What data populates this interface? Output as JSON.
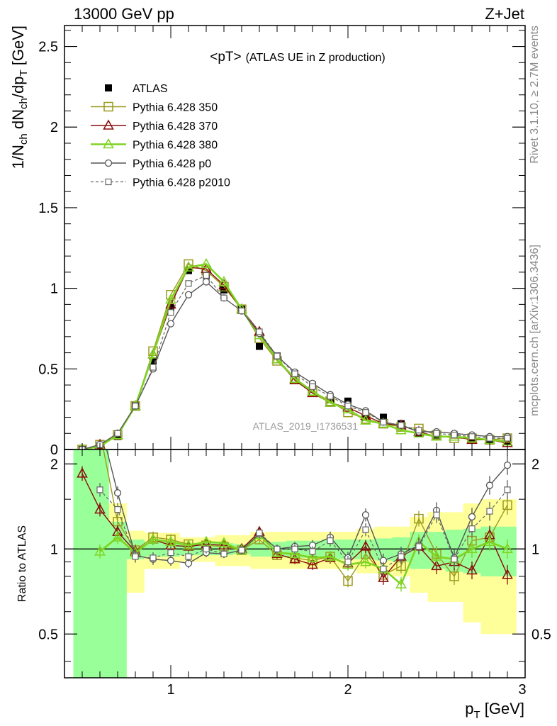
{
  "header": {
    "left": "13000 GeV pp",
    "right": "Z+Jet"
  },
  "side_text": {
    "top": "Rivet 3.1.10, ≥ 2.7M events",
    "bottom": "mcplots.cern.ch [arXiv:1306.3436]"
  },
  "chart_data": [
    {
      "type": "line",
      "panel": "main",
      "title": "<pT>",
      "subtitle": "(ATLAS UE in Z production)",
      "watermark": "ATLAS_2019_I1736531",
      "ylabel": "1/N_ch dN_ch/dp_T [GeV]",
      "ylim": [
        0,
        2.63
      ],
      "xlim": [
        0.4,
        3.0
      ],
      "yticks": [
        0,
        0.5,
        1,
        1.5,
        2,
        2.5
      ],
      "ytick_labels": [
        "0",
        "0.5",
        "1",
        "1.5",
        "2",
        "2.5"
      ],
      "legend_position": "top-left",
      "x": [
        0.5,
        0.6,
        0.7,
        0.8,
        0.9,
        1.0,
        1.1,
        1.2,
        1.3,
        1.4,
        1.5,
        1.6,
        1.7,
        1.8,
        1.9,
        2.0,
        2.1,
        2.2,
        2.3,
        2.4,
        2.5,
        2.6,
        2.7,
        2.8,
        2.9
      ],
      "series": [
        {
          "name": "ATLAS",
          "color": "#000000",
          "marker": "filled-square",
          "line": "none",
          "values": [
            0.0,
            0.02,
            0.08,
            0.27,
            0.55,
            0.88,
            1.11,
            1.08,
            0.99,
            0.87,
            0.64,
            0.58,
            0.47,
            0.4,
            0.31,
            0.3,
            0.2,
            0.2,
            0.16,
            0.1,
            0.09,
            0.09,
            0.07,
            0.06,
            0.05
          ]
        },
        {
          "name": "Pythia 6.428 350",
          "color": "#9a9a1e",
          "marker": "open-square",
          "line": "solid",
          "values": [
            0.0,
            0.03,
            0.09,
            0.27,
            0.61,
            0.96,
            1.15,
            1.11,
            1.01,
            0.87,
            0.69,
            0.55,
            0.44,
            0.36,
            0.3,
            0.23,
            0.19,
            0.16,
            0.14,
            0.13,
            0.09,
            0.07,
            0.07,
            0.06,
            0.07
          ]
        },
        {
          "name": "Pythia 6.428 370",
          "color": "#8b0c0c",
          "marker": "open-triangle",
          "line": "solid",
          "values": [
            0.0,
            0.03,
            0.09,
            0.27,
            0.59,
            0.9,
            1.13,
            1.12,
            1.02,
            0.87,
            0.73,
            0.56,
            0.43,
            0.35,
            0.29,
            0.26,
            0.21,
            0.16,
            0.15,
            0.11,
            0.08,
            0.08,
            0.06,
            0.06,
            0.04
          ]
        },
        {
          "name": "Pythia 6.428 380",
          "color": "#7ed321",
          "marker": "open-triangle",
          "line": "solid-thick",
          "values": [
            0.0,
            0.02,
            0.09,
            0.27,
            0.59,
            0.93,
            1.13,
            1.15,
            1.04,
            0.87,
            0.71,
            0.56,
            0.44,
            0.36,
            0.29,
            0.25,
            0.18,
            0.16,
            0.12,
            0.1,
            0.08,
            0.08,
            0.07,
            0.06,
            0.05
          ]
        },
        {
          "name": "Pythia 6.428 p0",
          "color": "#555555",
          "marker": "open-circle",
          "line": "solid",
          "values": [
            0.0,
            0.03,
            0.1,
            0.27,
            0.5,
            0.78,
            0.96,
            1.04,
            0.94,
            0.86,
            0.72,
            0.58,
            0.48,
            0.41,
            0.34,
            0.28,
            0.24,
            0.17,
            0.15,
            0.11,
            0.11,
            0.1,
            0.09,
            0.08,
            0.08
          ]
        },
        {
          "name": "Pythia 6.428 p2010",
          "color": "#666666",
          "marker": "open-square-small",
          "line": "dashed",
          "values": [
            0.0,
            0.03,
            0.1,
            0.27,
            0.51,
            0.85,
            1.03,
            1.08,
            0.94,
            0.86,
            0.73,
            0.58,
            0.47,
            0.39,
            0.33,
            0.27,
            0.23,
            0.17,
            0.15,
            0.12,
            0.1,
            0.09,
            0.08,
            0.07,
            0.07
          ]
        }
      ]
    },
    {
      "type": "line",
      "panel": "ratio",
      "ylabel": "Ratio to ATLAS",
      "xlabel": "p_T [GeV]",
      "ylim": [
        0.35,
        2.25
      ],
      "xlim": [
        0.4,
        3.0
      ],
      "yticks": [
        0.5,
        1,
        2
      ],
      "ytick_labels": [
        "0.5",
        "1",
        "2"
      ],
      "xticks": [
        1,
        2,
        3
      ],
      "xtick_labels": [
        "1",
        "2",
        "3"
      ],
      "bands": {
        "x_edges": [
          0.45,
          0.55,
          0.65,
          0.75,
          0.85,
          0.95,
          1.05,
          1.15,
          1.25,
          1.35,
          1.45,
          1.55,
          1.65,
          1.75,
          1.85,
          1.95,
          2.05,
          2.15,
          2.25,
          2.35,
          2.45,
          2.55,
          2.65,
          2.75,
          2.85,
          2.95
        ],
        "green_lo": [
          0.35,
          0.35,
          0.35,
          0.92,
          0.94,
          0.94,
          0.95,
          0.95,
          0.95,
          0.96,
          0.94,
          0.94,
          0.93,
          0.93,
          0.92,
          0.92,
          0.92,
          0.91,
          0.9,
          0.85,
          0.85,
          0.83,
          0.82,
          0.8,
          0.8
        ],
        "green_hi": [
          2.25,
          2.25,
          1.25,
          1.08,
          1.06,
          1.06,
          1.05,
          1.05,
          1.05,
          1.04,
          1.06,
          1.06,
          1.07,
          1.07,
          1.08,
          1.08,
          1.08,
          1.09,
          1.1,
          1.15,
          1.15,
          1.17,
          1.18,
          1.2,
          1.2
        ],
        "yellow_lo": [
          0.35,
          0.35,
          0.35,
          0.7,
          0.85,
          0.85,
          0.9,
          0.9,
          0.87,
          0.87,
          0.85,
          0.85,
          0.85,
          0.85,
          0.85,
          0.85,
          0.82,
          0.82,
          0.8,
          0.7,
          0.65,
          0.65,
          0.55,
          0.5,
          0.5
        ],
        "yellow_hi": [
          2.25,
          2.25,
          1.45,
          1.16,
          1.14,
          1.14,
          1.1,
          1.1,
          1.12,
          1.12,
          1.15,
          1.15,
          1.15,
          1.15,
          1.15,
          1.15,
          1.18,
          1.2,
          1.2,
          1.3,
          1.35,
          1.35,
          1.45,
          1.5,
          1.5
        ]
      },
      "x": [
        0.5,
        0.6,
        0.7,
        0.8,
        0.9,
        1.0,
        1.1,
        1.2,
        1.3,
        1.4,
        1.5,
        1.6,
        1.7,
        1.8,
        1.9,
        2.0,
        2.1,
        2.2,
        2.3,
        2.4,
        2.5,
        2.6,
        2.7,
        2.8,
        2.9
      ],
      "series": [
        {
          "name": "Pythia 6.428 350",
          "color": "#9a9a1e",
          "marker": "open-square",
          "line": "solid",
          "values": [
            null,
            2.6,
            1.25,
            0.99,
            1.1,
            1.08,
            1.04,
            1.03,
            1.02,
            0.99,
            1.08,
            0.95,
            0.93,
            0.91,
            0.94,
            0.77,
            0.96,
            0.81,
            0.87,
            1.28,
            0.96,
            0.8,
            1.07,
            1.1,
            1.43
          ]
        },
        {
          "name": "Pythia 6.428 370",
          "color": "#8b0c0c",
          "marker": "open-triangle",
          "line": "solid",
          "values": [
            1.85,
            1.38,
            1.15,
            0.98,
            1.08,
            1.03,
            1.02,
            1.04,
            1.03,
            1.0,
            1.15,
            0.96,
            0.92,
            0.88,
            0.93,
            0.89,
            1.02,
            0.79,
            0.94,
            1.02,
            0.87,
            0.9,
            0.84,
            1.12,
            0.81
          ]
        },
        {
          "name": "Pythia 6.428 380",
          "color": "#7ed321",
          "marker": "open-triangle",
          "line": "solid-thick",
          "values": [
            null,
            0.98,
            1.1,
            0.97,
            1.08,
            1.06,
            1.03,
            1.06,
            1.05,
            0.99,
            1.12,
            0.97,
            0.96,
            0.93,
            0.94,
            0.88,
            0.9,
            0.85,
            0.75,
            1.06,
            0.94,
            0.92,
            1.0,
            1.06,
            1.0
          ]
        },
        {
          "name": "Pythia 6.428 p0",
          "color": "#555555",
          "marker": "open-circle",
          "line": "solid",
          "values": [
            null,
            2.8,
            1.58,
            0.95,
            0.92,
            0.91,
            0.89,
            0.97,
            0.96,
            0.99,
            1.13,
            1.0,
            1.02,
            1.03,
            1.1,
            0.93,
            1.32,
            0.91,
            0.96,
            1.03,
            1.37,
            0.93,
            1.3,
            1.68,
            1.98
          ]
        },
        {
          "name": "Pythia 6.428 p2010",
          "color": "#666666",
          "marker": "open-square-small",
          "line": "dashed",
          "values": [
            null,
            1.62,
            1.38,
            0.94,
            0.93,
            0.97,
            0.94,
            1.0,
            0.96,
            0.99,
            1.14,
            1.0,
            1.0,
            0.98,
            1.07,
            0.9,
            1.17,
            0.85,
            0.94,
            1.02,
            1.32,
            0.92,
            1.18,
            1.36,
            1.62
          ]
        }
      ]
    }
  ]
}
